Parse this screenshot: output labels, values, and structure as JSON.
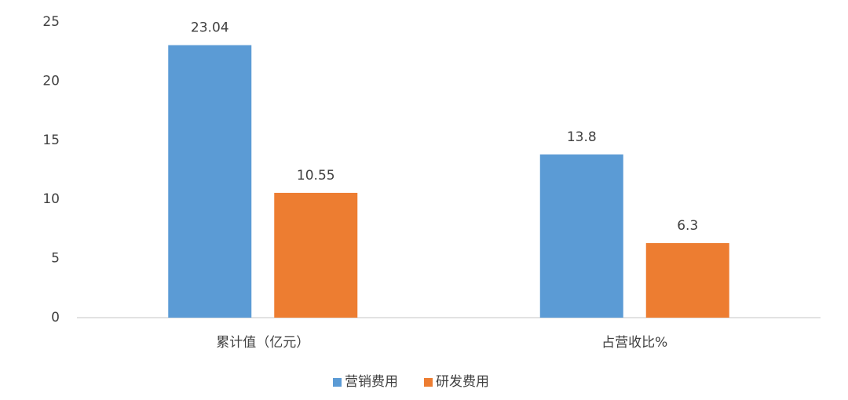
{
  "chart_data": {
    "type": "bar",
    "categories": [
      "累计值（亿元）",
      "占营收比%"
    ],
    "series": [
      {
        "name": "营销费用",
        "color": "#5b9bd5",
        "values": [
          23.04,
          13.8
        ]
      },
      {
        "name": "研发费用",
        "color": "#ed7d31",
        "values": [
          10.55,
          6.3
        ]
      }
    ],
    "ylim": [
      0,
      25
    ],
    "yticks": [
      0,
      5,
      10,
      15,
      20,
      25
    ],
    "grid": false,
    "legend": "bottom"
  }
}
